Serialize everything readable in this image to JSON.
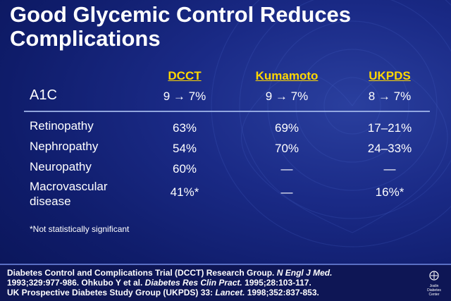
{
  "slide": {
    "title_line1": "Good Glycemic Control Reduces",
    "title_line2": "Complications"
  },
  "table": {
    "columns": [
      "DCCT",
      "Kumamoto",
      "UKPDS"
    ],
    "a1c_label": "A1C",
    "a1c_values": [
      "9 → 7%",
      "9 → 7%",
      "8 → 7%"
    ],
    "rows": [
      {
        "label": "Retinopathy",
        "values": [
          "63%",
          "69%",
          "17–21%"
        ]
      },
      {
        "label": "Nephropathy",
        "values": [
          "54%",
          "70%",
          "24–33%"
        ]
      },
      {
        "label": "Neuropathy",
        "values": [
          "60%",
          "—",
          "—"
        ]
      },
      {
        "label_line1": "Macrovascular",
        "label_line2": "disease",
        "values": [
          "41%*",
          "—",
          "16%*"
        ]
      }
    ],
    "footnote": "*Not statistically significant"
  },
  "references": {
    "line1_a": "Diabetes Control and Complications Trial (DCCT) Research Group. ",
    "line1_journal": "N Engl J Med.",
    "line2_a": "1993;329:977-986.  Ohkubo Y et al. ",
    "line2_journal": "Diabetes Res Clin Pract.",
    "line2_b": " 1995;28:103-117.",
    "line3_a": "UK Prospective Diabetes Study Group (UKPDS) 33: ",
    "line3_journal": "Lancet.",
    "line3_b": " 1998;352:837-853."
  },
  "logo": {
    "line1": "Joslin",
    "line2": "Diabetes",
    "line3": "Center"
  },
  "colors": {
    "background": "#1a2a86",
    "accent": "#ffd700",
    "text": "#ffffff"
  }
}
